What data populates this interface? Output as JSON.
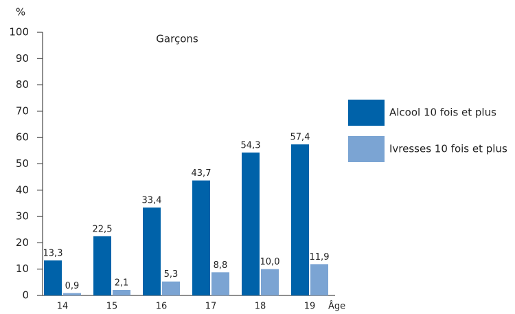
{
  "chart_data": {
    "type": "bar",
    "title": "Garçons",
    "y_label": "%",
    "x_label": "Âge",
    "categories": [
      "14",
      "15",
      "16",
      "17",
      "18",
      "19"
    ],
    "series": [
      {
        "name": "Alcool 10 fois et plus",
        "color": "#0062a9",
        "values": [
          13.3,
          22.5,
          33.4,
          43.7,
          54.3,
          57.4
        ],
        "value_labels": [
          "13,3",
          "22,5",
          "33,4",
          "43,7",
          "54,3",
          "57,4"
        ]
      },
      {
        "name": "Ivresses 10 fois et plus",
        "color": "#7ba4d3",
        "values": [
          0.9,
          2.1,
          5.3,
          8.8,
          10.0,
          11.9
        ],
        "value_labels": [
          "0,9",
          "2,1",
          "5,3",
          "8,8",
          "10,0",
          "11,9"
        ]
      }
    ],
    "ylim": [
      0,
      100
    ],
    "yticks": [
      0,
      10,
      20,
      30,
      40,
      50,
      60,
      70,
      80,
      90,
      100
    ],
    "legend": "right"
  }
}
